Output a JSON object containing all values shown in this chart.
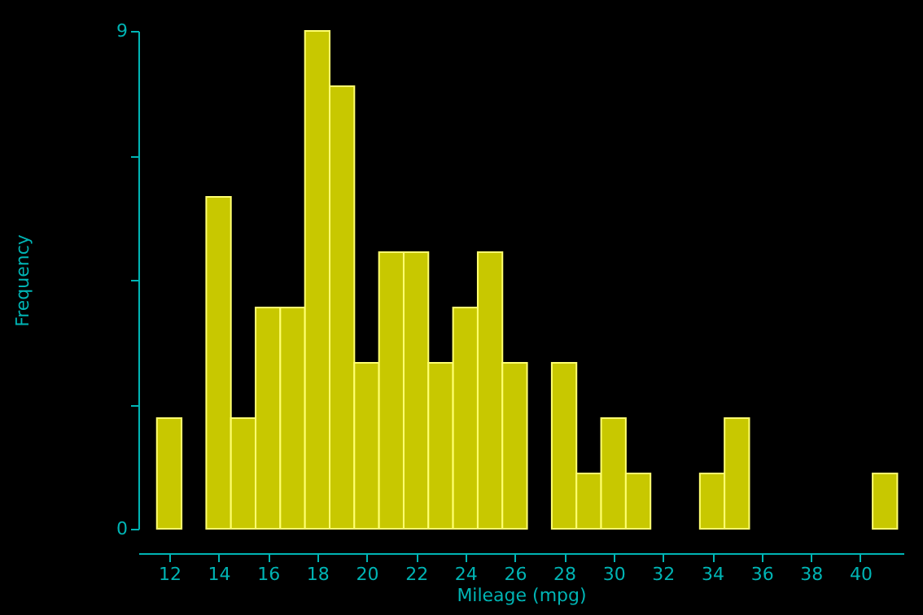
{
  "chart_data": {
    "type": "histogram",
    "xlabel": "Mileage (mpg)",
    "ylabel": "Frequency",
    "bins": [
      11.5,
      12.5,
      13.5,
      14.5,
      15.5,
      16.5,
      17.5,
      18.5,
      19.5,
      20.5,
      21.5,
      22.5,
      23.5,
      24.5,
      25.5,
      26.5,
      27.5,
      28.5,
      29.5,
      30.5,
      31.5,
      32.5,
      33.5,
      34.5,
      35.5,
      36.5,
      37.5,
      38.5,
      39.5,
      40.5,
      41.5
    ],
    "values": [
      2,
      0,
      6,
      2,
      4,
      4,
      9,
      8,
      3,
      5,
      5,
      3,
      4,
      5,
      3,
      0,
      3,
      1,
      2,
      1,
      0,
      0,
      1,
      2,
      0,
      0,
      0,
      0,
      0,
      1
    ],
    "color": "#c8c800",
    "xlim": [
      10.75,
      41.75
    ],
    "xticks": [
      12,
      14,
      16,
      18,
      20,
      22,
      24,
      26,
      28,
      30,
      32,
      34,
      36,
      38,
      40
    ],
    "ylim": [
      0,
      9
    ],
    "yticks": [
      0,
      {
        "value": 2.25,
        "label": null
      },
      {
        "value": 4.5,
        "label": null
      },
      {
        "value": 6.75,
        "label": null
      },
      9
    ],
    "grid": false
  }
}
